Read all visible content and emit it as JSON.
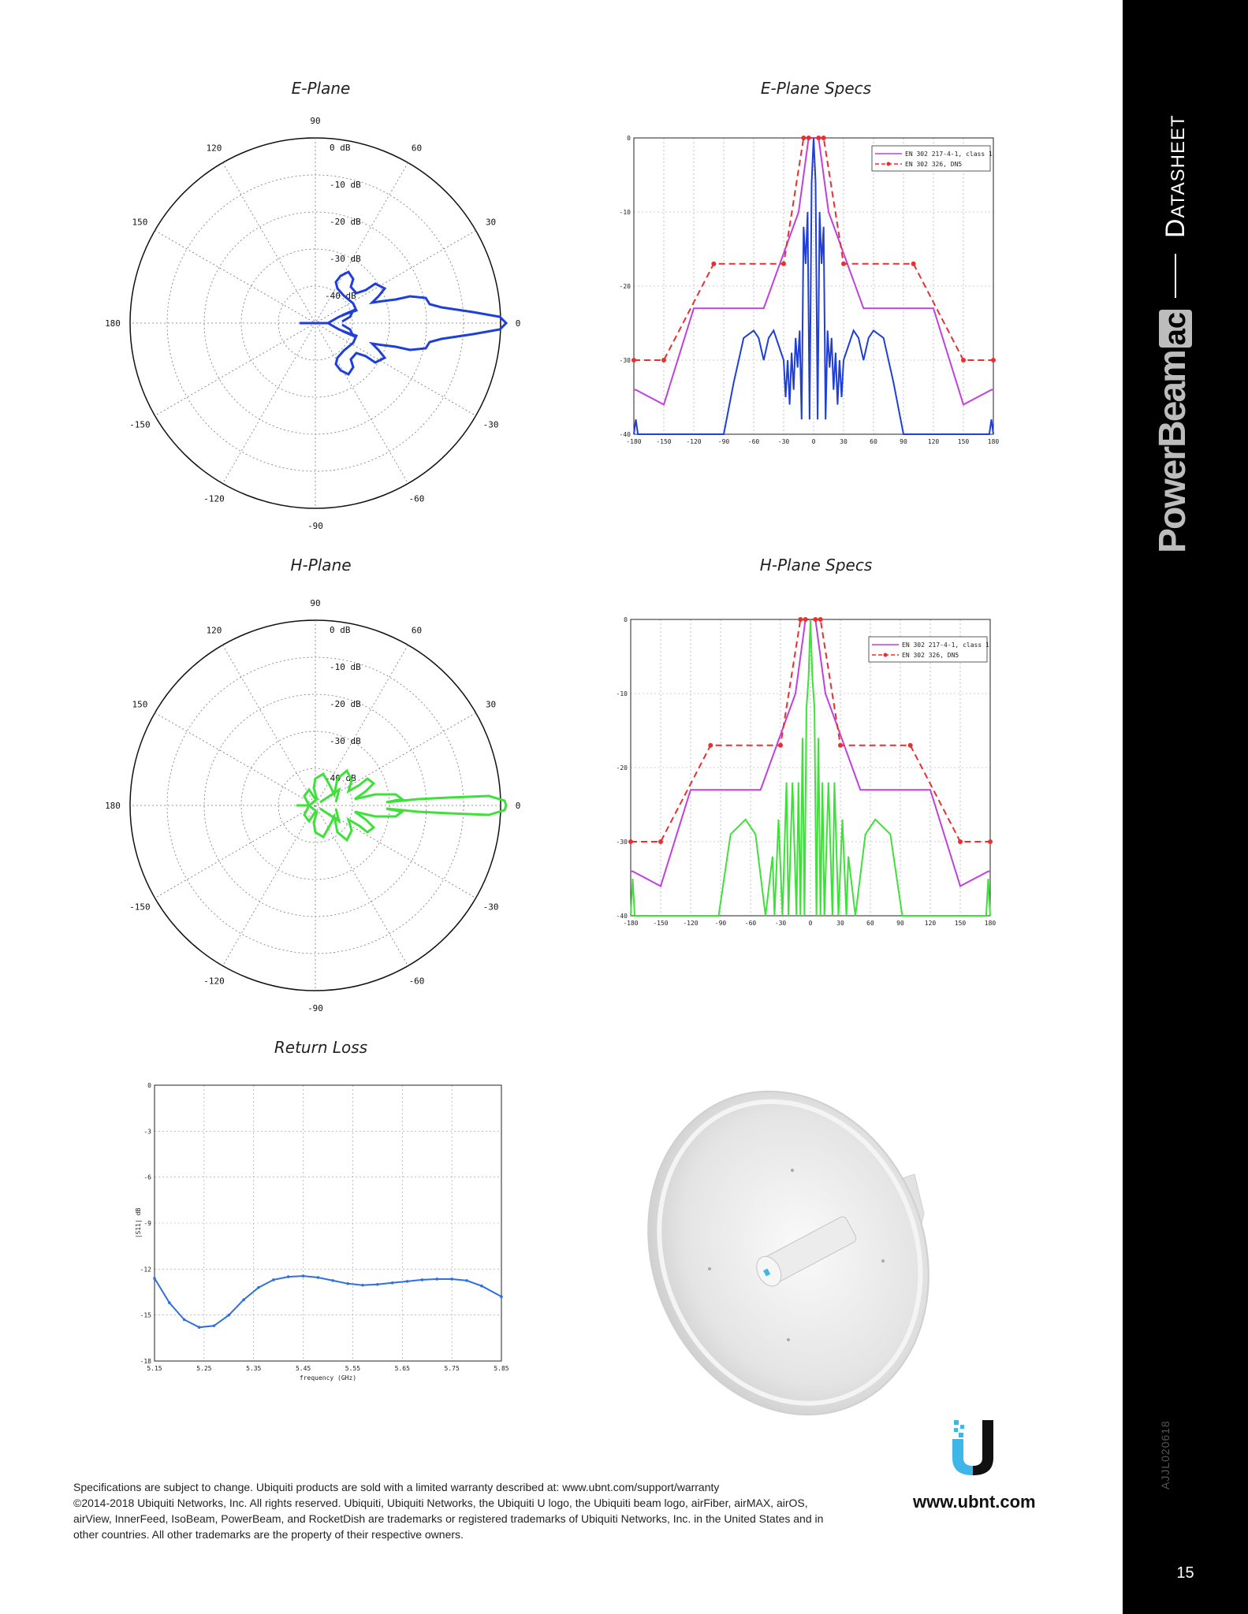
{
  "titles": {
    "e_plane": "E-Plane",
    "e_plane_specs": "E-Plane Specs",
    "h_plane": "H-Plane",
    "h_plane_specs": "H-Plane Specs",
    "return_loss": "Return Loss"
  },
  "polar": {
    "angle_labels": [
      "90",
      "60",
      "30",
      "0",
      "-30",
      "-60",
      "-90",
      "-120",
      "-150",
      "180",
      "150",
      "120"
    ],
    "ring_labels": [
      "0 dB",
      "-10 dB",
      "-20 dB",
      "-30 dB",
      "-40 dB"
    ]
  },
  "spec_legend": {
    "item1": "EN 302 217-4-1, class 1",
    "item2": "EN 302 326, DN5"
  },
  "sidebar": {
    "datasheet": "Datasheet",
    "product": "PowerBeam",
    "product_suffix": "ac",
    "code": "AJJL020618",
    "page_number": "15"
  },
  "footer": {
    "line1": "Specifications are subject to change. Ubiquiti products are sold with a limited warranty described at: www.ubnt.com/support/warranty",
    "line2": "©2014-2018 Ubiquiti Networks, Inc. All rights reserved. Ubiquiti, Ubiquiti Networks, the Ubiquiti U logo, the Ubiquiti beam logo, airFiber, airMAX, airOS,",
    "line3": "airView, InnerFeed, IsoBeam, PowerBeam, and RocketDish are trademarks or registered trademarks of Ubiquiti Networks, Inc. in the United States and in",
    "line4": "other countries. All other trademarks are the property of their respective owners.",
    "url": "www.ubnt.com"
  },
  "colors": {
    "e_plane": "#1f3fd8",
    "h_plane": "#3fe03a",
    "class1": "#c040e0",
    "dn5": "#e83030",
    "sidebar": "#000000"
  },
  "chart_data": [
    {
      "type": "line",
      "id": "e_plane_specs",
      "xlim": [
        -180,
        180
      ],
      "ylim": [
        -40,
        0
      ],
      "x_ticks": [
        -180,
        -150,
        -120,
        -90,
        -60,
        -30,
        0,
        30,
        60,
        90,
        120,
        150,
        180
      ],
      "y_ticks": [
        0,
        -10,
        -20,
        -30,
        -40
      ],
      "series": [
        {
          "name": "EN 302 217-4-1, class 1",
          "x": [
            -180,
            -178,
            -150,
            -120,
            -50,
            -15,
            -5,
            0,
            5,
            15,
            50,
            120,
            150,
            178,
            180
          ],
          "y": [
            -34,
            -34,
            -36,
            -23,
            -23,
            -10,
            0,
            0,
            0,
            -10,
            -23,
            -23,
            -36,
            -34,
            -34
          ]
        },
        {
          "name": "EN 302 326, DN5",
          "x": [
            -180,
            -150,
            -100,
            -30,
            -10,
            -5,
            5,
            10,
            30,
            100,
            150,
            180
          ],
          "y": [
            -30,
            -30,
            -17,
            -17,
            0,
            0,
            0,
            0,
            -17,
            -17,
            -30,
            -30
          ]
        },
        {
          "name": "",
          "x": [
            -180,
            -178,
            -176,
            -90,
            -80,
            -70,
            -60,
            -55,
            -50,
            -45,
            -40,
            -30,
            -28,
            -26,
            -24,
            -22,
            -20,
            -18,
            -16,
            -14,
            -12,
            -10,
            -8,
            -6,
            -4,
            -2,
            0,
            2,
            4,
            6,
            8,
            10,
            12,
            14,
            16,
            18,
            20,
            22,
            24,
            26,
            28,
            30,
            40,
            45,
            50,
            55,
            60,
            70,
            80,
            90,
            176,
            178,
            180
          ],
          "y": [
            -40,
            -38,
            -40,
            -40,
            -33,
            -27,
            -26,
            -27,
            -30,
            -27,
            -26,
            -30,
            -35,
            -30,
            -36,
            -29,
            -34,
            -27,
            -31,
            -26,
            -38,
            -12,
            -17,
            -10,
            -38,
            -6,
            0,
            -6,
            -38,
            -10,
            -17,
            -12,
            -38,
            -26,
            -31,
            -27,
            -34,
            -29,
            -36,
            -30,
            -35,
            -30,
            -26,
            -27,
            -30,
            -27,
            -26,
            -27,
            -33,
            -40,
            -40,
            -38,
            -40
          ]
        }
      ]
    },
    {
      "type": "line",
      "id": "h_plane_specs",
      "xlim": [
        -180,
        180
      ],
      "ylim": [
        -40,
        0
      ],
      "x_ticks": [
        -180,
        -150,
        -120,
        -90,
        -60,
        -30,
        0,
        30,
        60,
        90,
        120,
        150,
        180
      ],
      "y_ticks": [
        0,
        -10,
        -20,
        -30,
        -40
      ],
      "series": [
        {
          "name": "EN 302 217-4-1, class 1",
          "x": [
            -180,
            -178,
            -150,
            -120,
            -50,
            -15,
            -5,
            0,
            5,
            15,
            50,
            120,
            150,
            178,
            180
          ],
          "y": [
            -34,
            -34,
            -36,
            -23,
            -23,
            -10,
            0,
            0,
            0,
            -10,
            -23,
            -23,
            -36,
            -34,
            -34
          ]
        },
        {
          "name": "EN 302 326, DN5",
          "x": [
            -180,
            -150,
            -100,
            -30,
            -10,
            -5,
            5,
            10,
            30,
            100,
            150,
            180
          ],
          "y": [
            -30,
            -30,
            -17,
            -17,
            0,
            0,
            0,
            0,
            -17,
            -17,
            -30,
            -30
          ]
        },
        {
          "name": "",
          "x": [
            -180,
            -178,
            -176,
            -92,
            -80,
            -65,
            -55,
            -45,
            -38,
            -36,
            -32,
            -28,
            -24,
            -22,
            -18,
            -14,
            -12,
            -10,
            -8,
            -6,
            -4,
            -2,
            0,
            2,
            4,
            6,
            8,
            10,
            12,
            14,
            18,
            22,
            24,
            28,
            32,
            36,
            38,
            45,
            55,
            65,
            80,
            92,
            176,
            178,
            180
          ],
          "y": [
            -40,
            -35,
            -40,
            -40,
            -29,
            -27,
            -29,
            -40,
            -32,
            -40,
            -27,
            -40,
            -22,
            -40,
            -22,
            -40,
            -22,
            -40,
            -16,
            -40,
            -12,
            -8,
            0,
            -8,
            -12,
            -40,
            -16,
            -40,
            -22,
            -40,
            -22,
            -40,
            -22,
            -40,
            -27,
            -40,
            -32,
            -40,
            -29,
            -27,
            -29,
            -40,
            -40,
            -35,
            -40
          ]
        }
      ]
    },
    {
      "type": "line",
      "id": "return_loss",
      "xlabel": "frequency (GHz)",
      "ylabel": "|S11| dB",
      "xlim": [
        5.15,
        5.85
      ],
      "ylim": [
        -18,
        0
      ],
      "x_ticks": [
        5.15,
        5.25,
        5.35,
        5.45,
        5.55,
        5.65,
        5.75,
        5.85
      ],
      "y_ticks": [
        0,
        -3,
        -6,
        -9,
        -12,
        -15,
        -18
      ],
      "series": [
        {
          "name": "",
          "x": [
            5.15,
            5.18,
            5.21,
            5.24,
            5.27,
            5.3,
            5.33,
            5.36,
            5.39,
            5.42,
            5.45,
            5.48,
            5.51,
            5.54,
            5.57,
            5.6,
            5.63,
            5.66,
            5.69,
            5.72,
            5.75,
            5.78,
            5.81,
            5.85
          ],
          "y": [
            -12.6,
            -14.2,
            -15.3,
            -15.8,
            -15.7,
            -15.0,
            -14.0,
            -13.2,
            -12.7,
            -12.5,
            -12.45,
            -12.55,
            -12.75,
            -12.95,
            -13.05,
            -13.0,
            -12.9,
            -12.8,
            -12.7,
            -12.65,
            -12.65,
            -12.75,
            -13.1,
            -13.8
          ]
        }
      ]
    }
  ]
}
